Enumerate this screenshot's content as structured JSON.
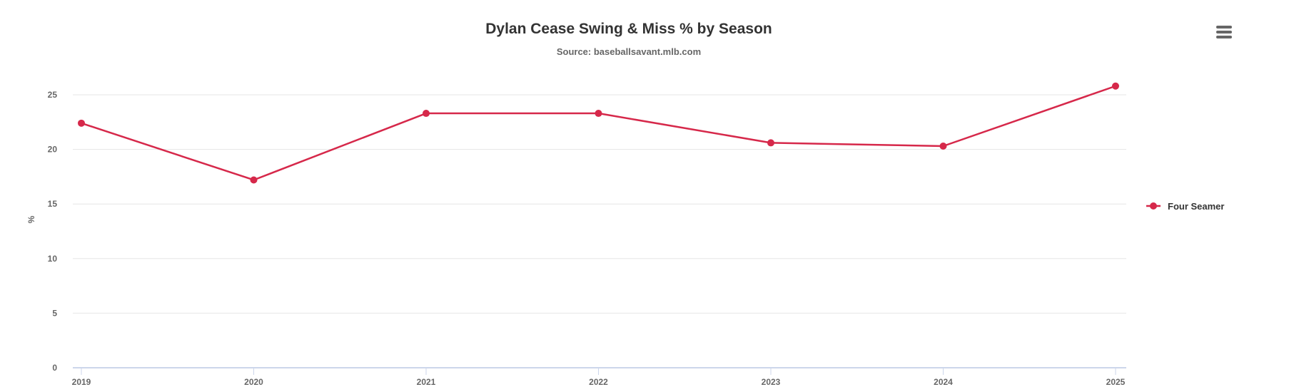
{
  "chart_data": {
    "type": "line",
    "title": "Dylan Cease Swing & Miss % by Season",
    "subtitle": "Source: baseballsavant.mlb.com",
    "xlabel": "",
    "ylabel": "%",
    "categories": [
      "2019",
      "2020",
      "2021",
      "2022",
      "2023",
      "2024",
      "2025"
    ],
    "series": [
      {
        "name": "Four Seamer",
        "color": "#d6284a",
        "values": [
          22.4,
          17.2,
          23.3,
          23.3,
          20.6,
          20.3,
          25.8
        ]
      }
    ],
    "ylim": [
      0,
      25
    ],
    "yticks": [
      "0",
      "5",
      "10",
      "15",
      "20",
      "25"
    ],
    "grid": true,
    "legend_position": "right"
  },
  "menu": {
    "icon": "hamburger-menu-icon"
  }
}
